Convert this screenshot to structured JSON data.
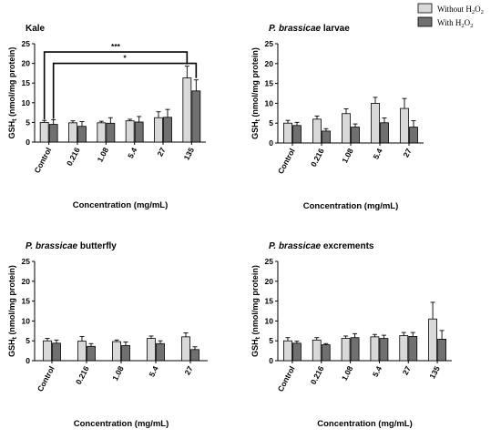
{
  "legend": {
    "entries": [
      {
        "label": "Without H",
        "sub": "2",
        "label2": "O",
        "sub2": "2",
        "color": "#d9d9d9"
      },
      {
        "label": "With H",
        "sub": "2",
        "label2": "O",
        "sub2": "2",
        "color": "#707070"
      }
    ]
  },
  "chart_data": [
    {
      "type": "bar",
      "title": "Kale",
      "title_italic": "",
      "ylabel": "GSH",
      "ylabel_sub": "t",
      "ylabel_rest": " (nmol/mg protein)",
      "xlabel": "Concentration (mg/mL)",
      "ylim": [
        0,
        25
      ],
      "yticks": [
        0,
        5,
        10,
        15,
        20,
        25
      ],
      "categories": [
        "Control",
        "0.216",
        "1.08",
        "5.4",
        "27",
        "135"
      ],
      "series": [
        {
          "name": "Without H2O2",
          "values": [
            5.0,
            4.9,
            4.9,
            5.4,
            6.2,
            16.3
          ],
          "errors": [
            0.5,
            0.5,
            0.4,
            0.4,
            1.5,
            3.0
          ]
        },
        {
          "name": "With H2O2",
          "values": [
            4.5,
            4.0,
            4.8,
            5.1,
            6.3,
            13.0
          ],
          "errors": [
            1.2,
            1.2,
            1.4,
            1.4,
            2.0,
            2.8
          ]
        }
      ],
      "annotations": [
        {
          "text": "***",
          "from": 0,
          "to": 5
        },
        {
          "text": "*",
          "from": 0,
          "to": 5
        }
      ]
    },
    {
      "type": "bar",
      "title": "",
      "title_italic": "P. brassicae",
      "title_rest": " larvae",
      "ylabel": "GSH",
      "ylabel_sub": "t",
      "ylabel_rest": " (nmol/mg protein)",
      "xlabel": "Concentration (mg/mL)",
      "ylim": [
        0,
        25
      ],
      "yticks": [
        0,
        5,
        10,
        15,
        20,
        25
      ],
      "categories": [
        "Control",
        "0.216",
        "1.08",
        "5.4",
        "27"
      ],
      "series": [
        {
          "name": "Without H2O2",
          "values": [
            5.0,
            6.0,
            7.4,
            10.0,
            8.7
          ],
          "errors": [
            0.7,
            0.8,
            1.2,
            1.5,
            2.5
          ]
        },
        {
          "name": "With H2O2",
          "values": [
            4.4,
            3.0,
            4.0,
            5.1,
            4.0
          ],
          "errors": [
            0.8,
            0.6,
            0.8,
            1.2,
            1.6
          ]
        }
      ]
    },
    {
      "type": "bar",
      "title": "",
      "title_italic": "P. brassicae",
      "title_rest": " butterfly",
      "ylabel": "GSH",
      "ylabel_sub": "t",
      "ylabel_rest": " (nmol/mg protein)",
      "xlabel": "Concentration (mg/mL)",
      "ylim": [
        0,
        25
      ],
      "yticks": [
        0,
        5,
        10,
        15,
        20,
        25
      ],
      "categories": [
        "Control",
        "0.216",
        "1.08",
        "5.4",
        "27"
      ],
      "series": [
        {
          "name": "Without H2O2",
          "values": [
            5.0,
            4.9,
            4.8,
            5.6,
            6.0
          ],
          "errors": [
            0.6,
            1.2,
            0.4,
            0.6,
            1.0
          ]
        },
        {
          "name": "With H2O2",
          "values": [
            4.4,
            3.6,
            3.8,
            4.3,
            2.8
          ],
          "errors": [
            0.8,
            0.7,
            0.9,
            0.7,
            0.7
          ]
        }
      ]
    },
    {
      "type": "bar",
      "title": "",
      "title_italic": "P. brassicae",
      "title_rest": " excrements",
      "ylabel": "GSH",
      "ylabel_sub": "t",
      "ylabel_rest": " (nmol/mg protein)",
      "xlabel": "Concentration (mg/mL)",
      "ylim": [
        0,
        25
      ],
      "yticks": [
        0,
        5,
        10,
        15,
        20,
        25
      ],
      "categories": [
        "Control",
        "0.216",
        "1.08",
        "5.4",
        "27",
        "135"
      ],
      "series": [
        {
          "name": "Without H2O2",
          "values": [
            5.0,
            5.2,
            5.6,
            6.0,
            6.3,
            10.5
          ],
          "errors": [
            0.8,
            0.6,
            0.6,
            0.6,
            0.8,
            4.2
          ]
        },
        {
          "name": "With H2O2",
          "values": [
            4.4,
            4.0,
            5.8,
            5.6,
            6.1,
            5.4
          ],
          "errors": [
            0.5,
            0.3,
            1.0,
            0.8,
            1.0,
            2.2
          ]
        }
      ]
    }
  ]
}
